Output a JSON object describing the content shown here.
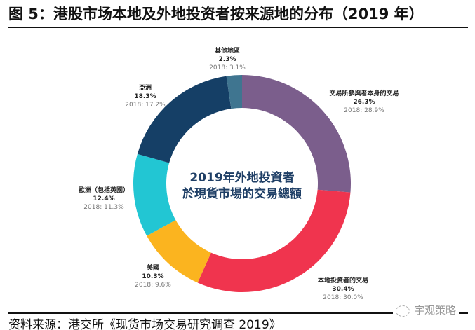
{
  "title": "图 5：港股市场本地及外地投资者按来源地的分布（2019 年）",
  "source": "资料来源：港交所《现货市场交易研究调查 2019》",
  "watermark": "宇观策略",
  "chart_data": {
    "type": "pie",
    "donut": true,
    "center_label": [
      "2019年外地投資者",
      "於現貨市場的交易總額"
    ],
    "start": "top, clockwise",
    "slices": [
      {
        "name": "交易所參與者本身的交易",
        "value": 26.3,
        "label": "26.3%",
        "prior": "2018: 28.9%",
        "color": "#7b5e8c"
      },
      {
        "name": "本地投資者的交易",
        "value": 30.4,
        "label": "30.4%",
        "prior": "2018: 30.0%",
        "color": "#f0344e"
      },
      {
        "name": "美國",
        "value": 10.3,
        "label": "10.3%",
        "prior": "2018: 9.6%",
        "color": "#fbb41f"
      },
      {
        "name": "歐洲（包括英國）",
        "value": 12.4,
        "label": "12.4%",
        "prior": "2018: 11.3%",
        "color": "#22c6d3"
      },
      {
        "name": "亞洲",
        "value": 18.3,
        "label": "18.3%",
        "prior": "2018: 17.2%",
        "color": "#153f66"
      },
      {
        "name": "其他地區",
        "value": 2.3,
        "label": "2.3%",
        "prior": "2018: 3.1%",
        "color": "#3f7590"
      }
    ]
  }
}
